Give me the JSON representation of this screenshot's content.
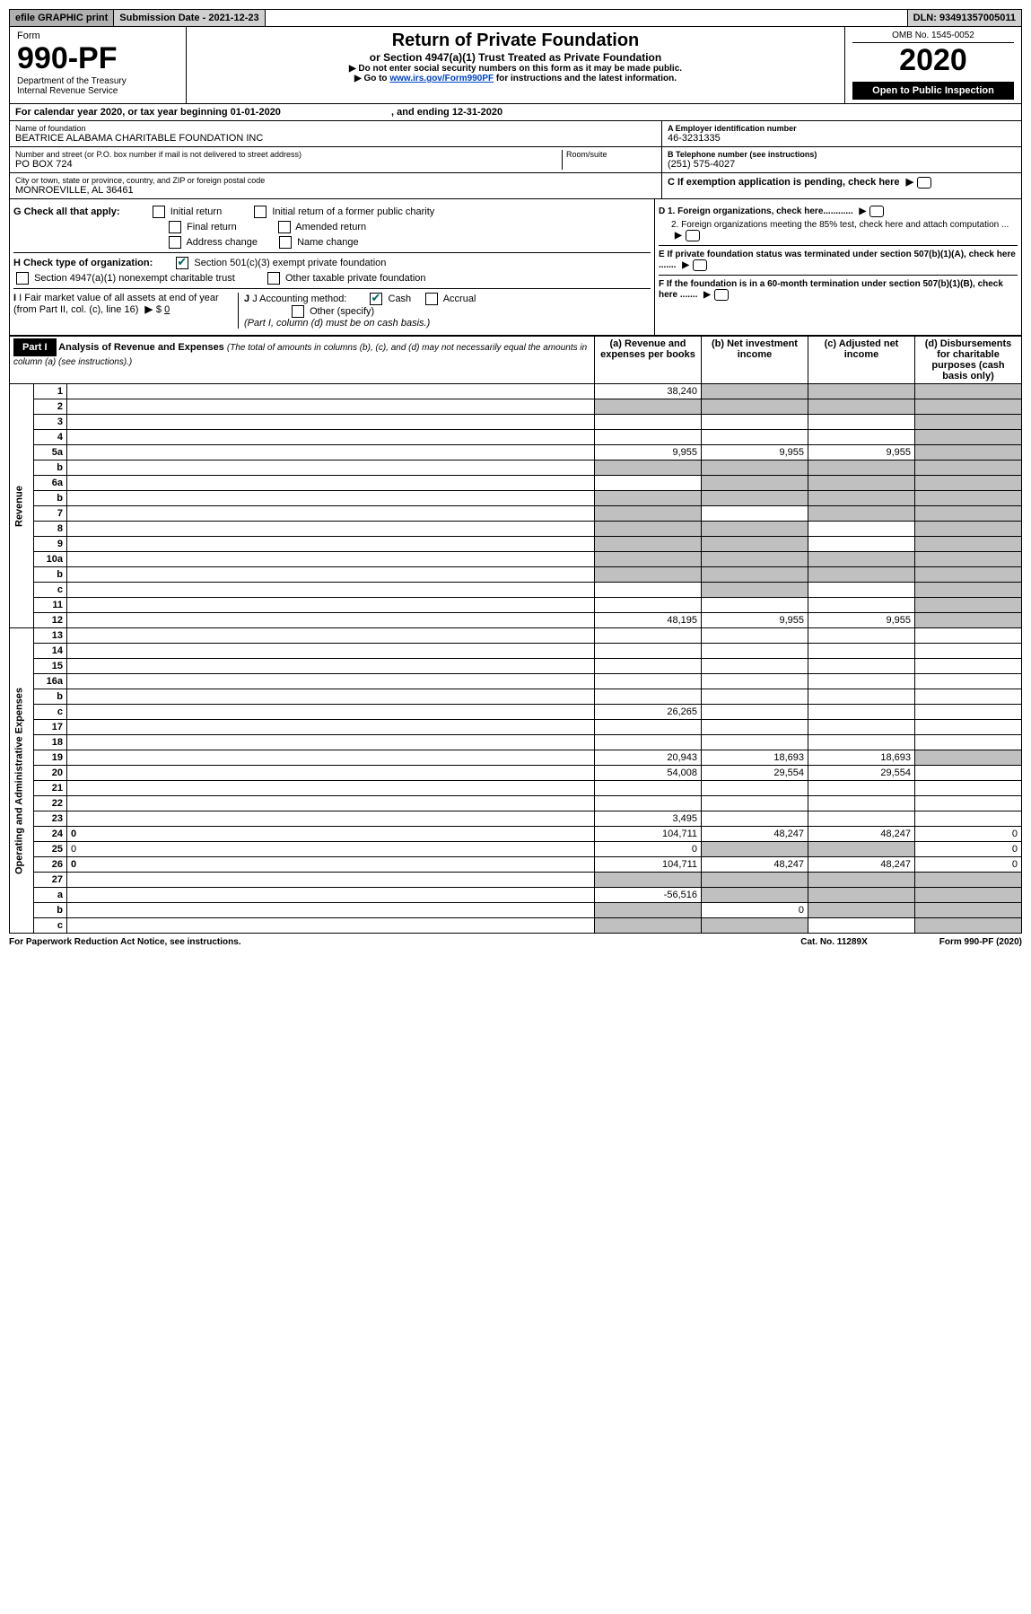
{
  "top": {
    "efile": "efile GRAPHIC print",
    "subdate_lbl": "Submission Date - ",
    "subdate": "2021-12-23",
    "dln_lbl": "DLN: ",
    "dln": "93491357005011"
  },
  "header": {
    "form_word": "Form",
    "form_num": "990-PF",
    "dept": "Department of the Treasury",
    "irs": "Internal Revenue Service",
    "title": "Return of Private Foundation",
    "subtitle": "or Section 4947(a)(1) Trust Treated as Private Foundation",
    "instr1": "▶ Do not enter social security numbers on this form as it may be made public.",
    "instr2_pre": "▶ Go to ",
    "instr2_link": "www.irs.gov/Form990PF",
    "instr2_post": " for instructions and the latest information.",
    "omb": "OMB No. 1545-0052",
    "year": "2020",
    "open": "Open to Public Inspection"
  },
  "calyear": {
    "pre": "For calendar year 2020, or tax year beginning ",
    "begin": "01-01-2020",
    "mid": " , and ending ",
    "end": "12-31-2020"
  },
  "id": {
    "name_lbl": "Name of foundation",
    "name": "BEATRICE ALABAMA CHARITABLE FOUNDATION INC",
    "addr_lbl": "Number and street (or P.O. box number if mail is not delivered to street address)",
    "room_lbl": "Room/suite",
    "addr": "PO BOX 724",
    "city_lbl": "City or town, state or province, country, and ZIP or foreign postal code",
    "city": "MONROEVILLE, AL  36461",
    "a_lbl": "A Employer identification number",
    "a_val": "46-3231335",
    "b_lbl": "B Telephone number (see instructions)",
    "b_val": "(251) 575-4027",
    "c_lbl": "C If exemption application is pending, check here",
    "d1": "D 1. Foreign organizations, check here............",
    "d2": "2. Foreign organizations meeting the 85% test, check here and attach computation ...",
    "e": "E  If private foundation status was terminated under section 507(b)(1)(A), check here .......",
    "f": "F  If the foundation is in a 60-month termination under section 507(b)(1)(B), check here .......",
    "g_lbl": "G Check all that apply:",
    "g_initial": "Initial return",
    "g_initial_former": "Initial return of a former public charity",
    "g_final": "Final return",
    "g_amended": "Amended return",
    "g_addr": "Address change",
    "g_name": "Name change",
    "h_lbl": "H Check type of organization:",
    "h_501c3": "Section 501(c)(3) exempt private foundation",
    "h_4947": "Section 4947(a)(1) nonexempt charitable trust",
    "h_other_tax": "Other taxable private foundation",
    "i_lbl": "I Fair market value of all assets at end of year (from Part II, col. (c), line 16)",
    "i_val": "0",
    "j_lbl": "J Accounting method:",
    "j_cash": "Cash",
    "j_accrual": "Accrual",
    "j_other": "Other (specify)",
    "j_note": "(Part I, column (d) must be on cash basis.)"
  },
  "part1": {
    "label": "Part I",
    "title": "Analysis of Revenue and Expenses",
    "note": " (The total of amounts in columns (b), (c), and (d) may not necessarily equal the amounts in column (a) (see instructions).)",
    "col_a": "(a)   Revenue and expenses per books",
    "col_b": "(b)   Net investment income",
    "col_c": "(c)   Adjusted net income",
    "col_d": "(d)   Disbursements for charitable purposes (cash basis only)"
  },
  "sections": {
    "revenue": "Revenue",
    "opex": "Operating and Administrative Expenses"
  },
  "rows": [
    {
      "n": "1",
      "d": "",
      "a": "38,240",
      "b": "",
      "c": "",
      "sb": true,
      "sc": true,
      "sd": true
    },
    {
      "n": "2",
      "d": "",
      "a": "",
      "b": "",
      "c": "",
      "sa": true,
      "sb": true,
      "sc": true,
      "sd": true
    },
    {
      "n": "3",
      "d": "",
      "a": "",
      "b": "",
      "c": "",
      "sd": true
    },
    {
      "n": "4",
      "d": "",
      "a": "",
      "b": "",
      "c": "",
      "sd": true
    },
    {
      "n": "5a",
      "d": "",
      "a": "9,955",
      "b": "9,955",
      "c": "9,955",
      "sd": true
    },
    {
      "n": "b",
      "d": "",
      "a": "",
      "b": "",
      "c": "",
      "sa": true,
      "sb": true,
      "sc": true,
      "sd": true
    },
    {
      "n": "6a",
      "d": "",
      "a": "",
      "b": "",
      "c": "",
      "sb": true,
      "sc": true,
      "sd": true
    },
    {
      "n": "b",
      "d": "",
      "a": "",
      "b": "",
      "c": "",
      "sa": true,
      "sb": true,
      "sc": true,
      "sd": true
    },
    {
      "n": "7",
      "d": "",
      "a": "",
      "b": "",
      "c": "",
      "sa": true,
      "sc": true,
      "sd": true
    },
    {
      "n": "8",
      "d": "",
      "a": "",
      "b": "",
      "c": "",
      "sa": true,
      "sb": true,
      "sd": true
    },
    {
      "n": "9",
      "d": "",
      "a": "",
      "b": "",
      "c": "",
      "sa": true,
      "sb": true,
      "sd": true
    },
    {
      "n": "10a",
      "d": "",
      "a": "",
      "b": "",
      "c": "",
      "sa": true,
      "sb": true,
      "sc": true,
      "sd": true
    },
    {
      "n": "b",
      "d": "",
      "a": "",
      "b": "",
      "c": "",
      "sa": true,
      "sb": true,
      "sc": true,
      "sd": true
    },
    {
      "n": "c",
      "d": "",
      "a": "",
      "b": "",
      "c": "",
      "sb": true,
      "sd": true
    },
    {
      "n": "11",
      "d": "",
      "a": "",
      "b": "",
      "c": "",
      "sd": true
    },
    {
      "n": "12",
      "d": "",
      "a": "48,195",
      "b": "9,955",
      "c": "9,955",
      "bold": true,
      "sd": true
    },
    {
      "n": "13",
      "d": "",
      "a": "",
      "b": "",
      "c": ""
    },
    {
      "n": "14",
      "d": "",
      "a": "",
      "b": "",
      "c": ""
    },
    {
      "n": "15",
      "d": "",
      "a": "",
      "b": "",
      "c": ""
    },
    {
      "n": "16a",
      "d": "",
      "a": "",
      "b": "",
      "c": ""
    },
    {
      "n": "b",
      "d": "",
      "a": "",
      "b": "",
      "c": ""
    },
    {
      "n": "c",
      "d": "",
      "a": "26,265",
      "b": "",
      "c": ""
    },
    {
      "n": "17",
      "d": "",
      "a": "",
      "b": "",
      "c": ""
    },
    {
      "n": "18",
      "d": "",
      "a": "",
      "b": "",
      "c": ""
    },
    {
      "n": "19",
      "d": "",
      "a": "20,943",
      "b": "18,693",
      "c": "18,693",
      "sd": true
    },
    {
      "n": "20",
      "d": "",
      "a": "54,008",
      "b": "29,554",
      "c": "29,554"
    },
    {
      "n": "21",
      "d": "",
      "a": "",
      "b": "",
      "c": ""
    },
    {
      "n": "22",
      "d": "",
      "a": "",
      "b": "",
      "c": ""
    },
    {
      "n": "23",
      "d": "",
      "a": "3,495",
      "b": "",
      "c": ""
    },
    {
      "n": "24",
      "d": "0",
      "a": "104,711",
      "b": "48,247",
      "c": "48,247",
      "bold": true
    },
    {
      "n": "25",
      "d": "0",
      "a": "0",
      "b": "",
      "c": "",
      "sb": true,
      "sc": true
    },
    {
      "n": "26",
      "d": "0",
      "a": "104,711",
      "b": "48,247",
      "c": "48,247",
      "bold": true
    },
    {
      "n": "27",
      "d": "",
      "a": "",
      "b": "",
      "c": "",
      "sa": true,
      "sb": true,
      "sc": true,
      "sd": true
    },
    {
      "n": "a",
      "d": "",
      "a": "-56,516",
      "b": "",
      "c": "",
      "bold": true,
      "sb": true,
      "sc": true,
      "sd": true
    },
    {
      "n": "b",
      "d": "",
      "a": "",
      "b": "0",
      "c": "",
      "bold": true,
      "sa": true,
      "sc": true,
      "sd": true
    },
    {
      "n": "c",
      "d": "",
      "a": "",
      "b": "",
      "c": "",
      "bold": true,
      "sa": true,
      "sb": true,
      "sd": true
    }
  ],
  "footer": {
    "left": "For Paperwork Reduction Act Notice, see instructions.",
    "mid": "Cat. No. 11289X",
    "right": "Form 990-PF (2020)"
  }
}
